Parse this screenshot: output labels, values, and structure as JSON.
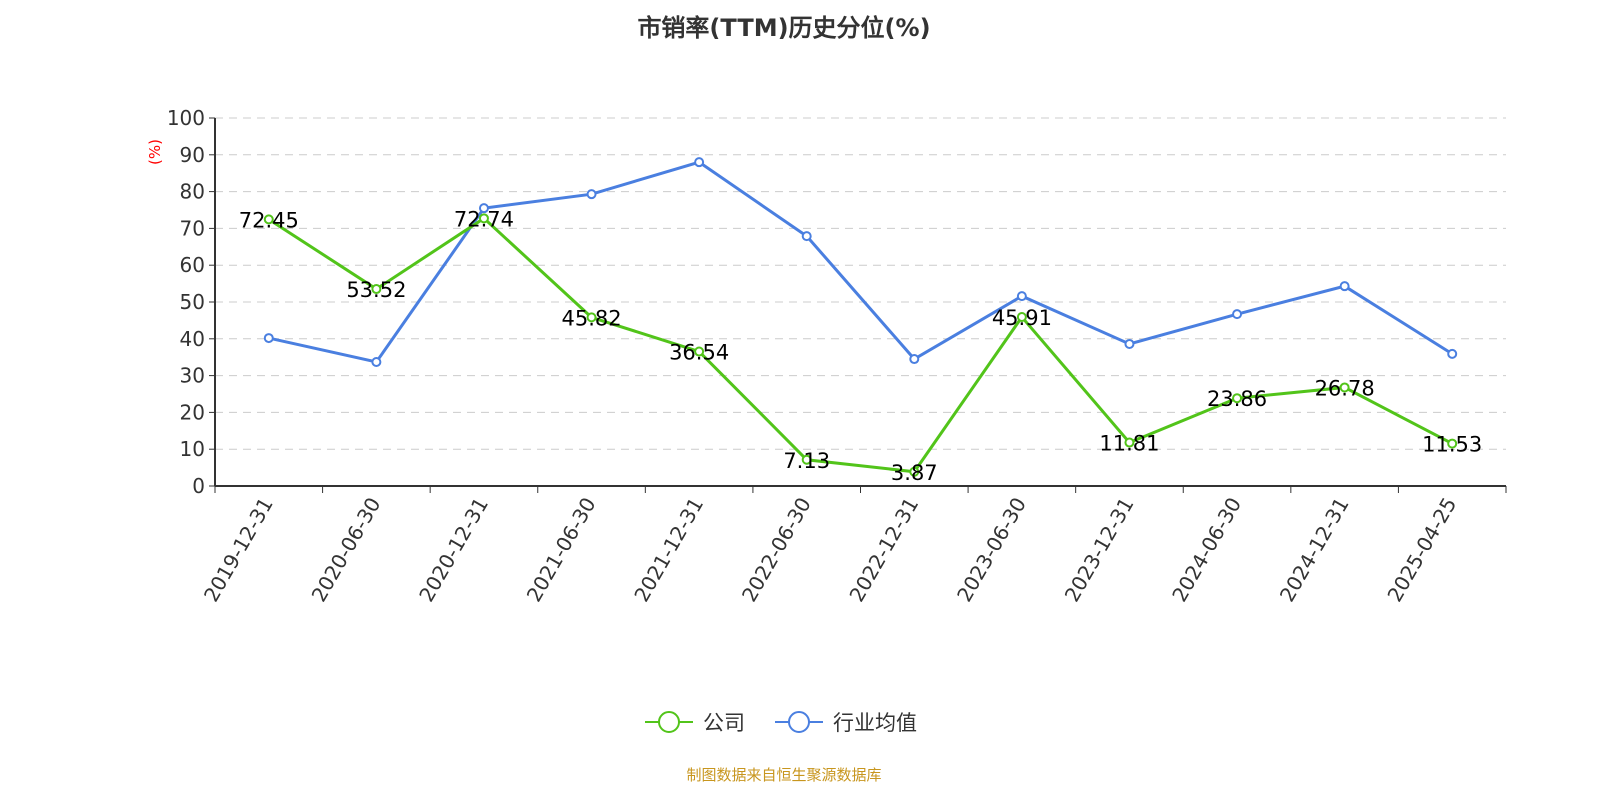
{
  "chart_data": {
    "type": "line",
    "title": "市销率(TTM)历史分位(%)",
    "ylabel": "(%)",
    "ylim": [
      0,
      100
    ],
    "yticks": [
      0,
      10,
      20,
      30,
      40,
      50,
      60,
      70,
      80,
      90,
      100
    ],
    "categories": [
      "2019-12-31",
      "2020-06-30",
      "2020-12-31",
      "2021-06-30",
      "2021-12-31",
      "2022-06-30",
      "2022-12-31",
      "2023-06-30",
      "2023-12-31",
      "2024-06-30",
      "2024-12-31",
      "2025-04-25"
    ],
    "series": [
      {
        "name": "公司",
        "color": "#52c41a",
        "labels": true,
        "values": [
          72.45,
          53.52,
          72.74,
          45.82,
          36.54,
          7.13,
          3.87,
          45.91,
          11.81,
          23.86,
          26.78,
          11.53
        ]
      },
      {
        "name": "行业均值",
        "color": "#4a7fe0",
        "labels": false,
        "values": [
          40.2,
          33.7,
          75.5,
          79.3,
          88.0,
          67.9,
          34.5,
          51.6,
          38.6,
          46.7,
          54.3,
          35.9
        ]
      }
    ],
    "grid": true,
    "legend": "bottom-center"
  },
  "source": "制图数据来自恒生聚源数据库"
}
